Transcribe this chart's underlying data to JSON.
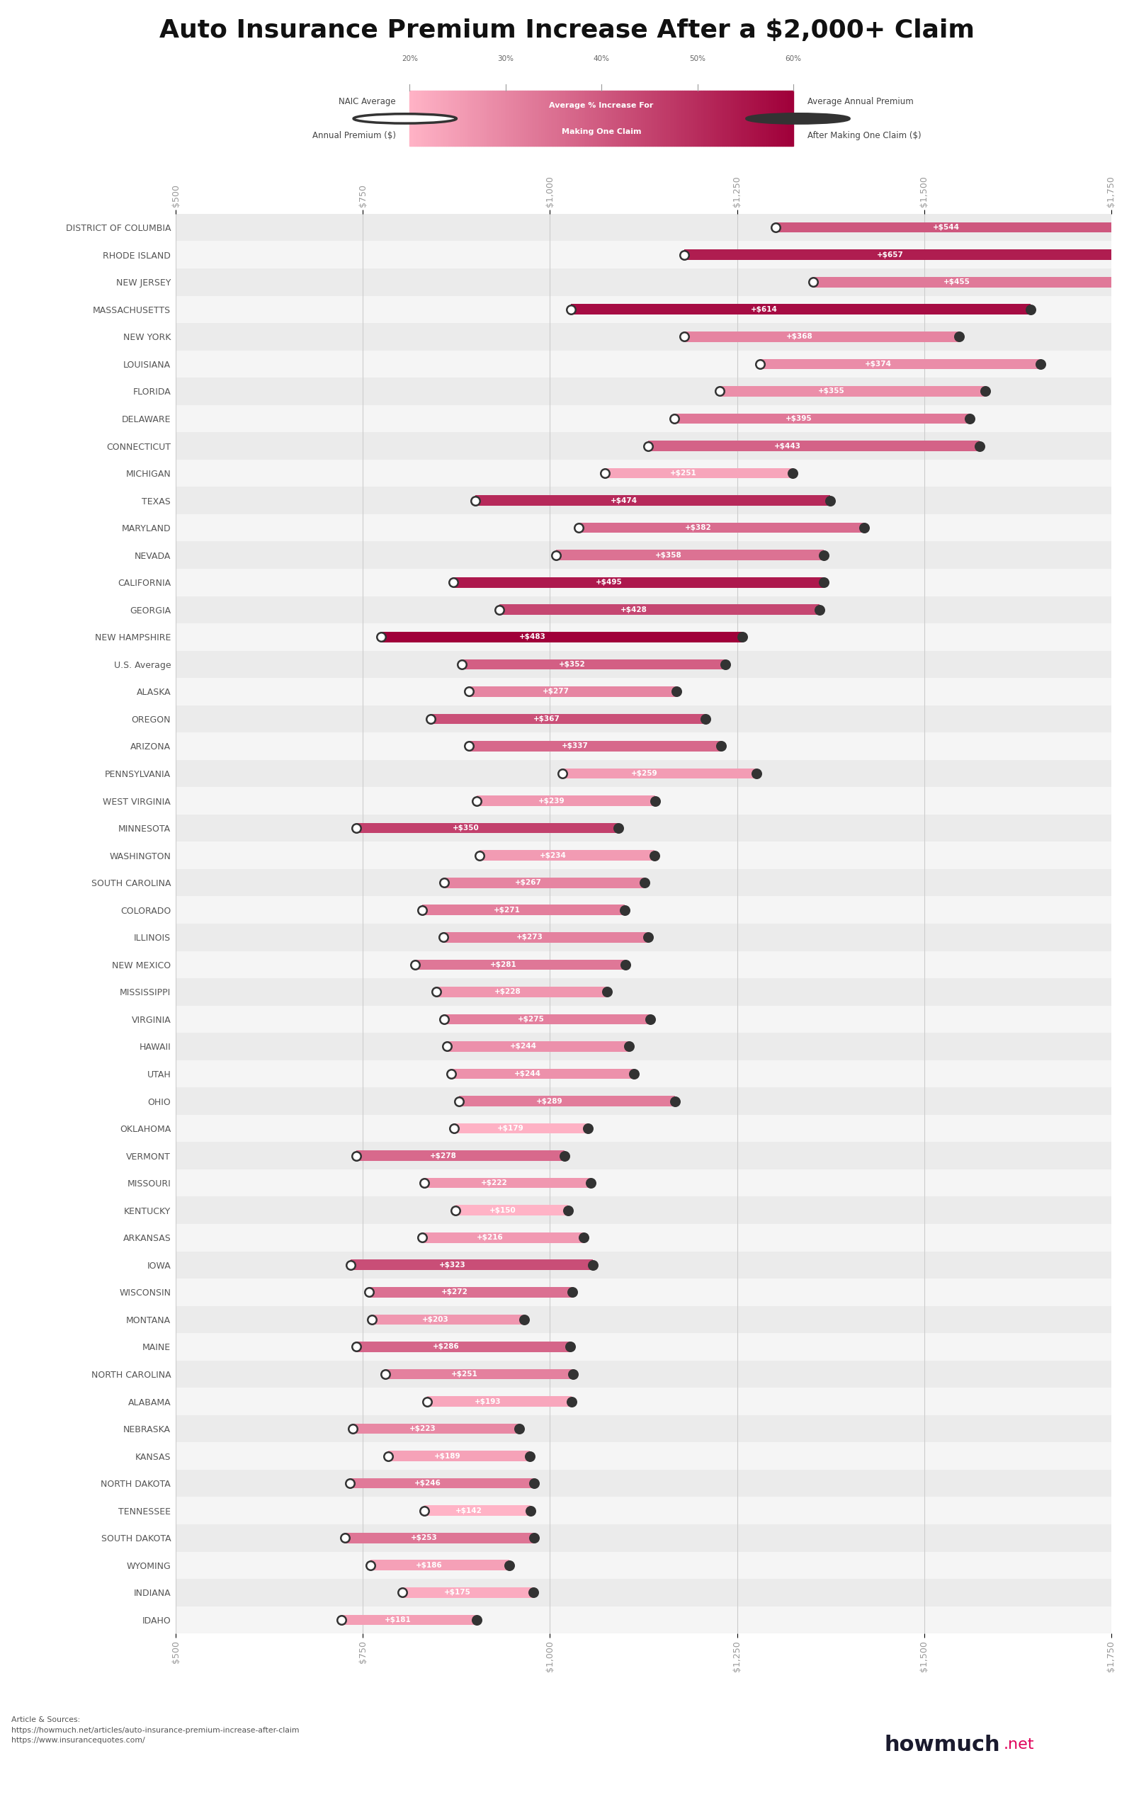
{
  "title": "Auto Insurance Premium Increase After a $2,000+ Claim",
  "states": [
    "DISTRICT OF COLUMBIA",
    "RHODE ISLAND",
    "NEW JERSEY",
    "MASSACHUSETTS",
    "NEW YORK",
    "LOUISIANA",
    "FLORIDA",
    "DELAWARE",
    "CONNECTICUT",
    "MICHIGAN",
    "TEXAS",
    "MARYLAND",
    "NEVADA",
    "CALIFORNIA",
    "GEORGIA",
    "NEW HAMPSHIRE",
    "U.S. Average",
    "ALASKA",
    "OREGON",
    "ARIZONA",
    "PENNSYLVANIA",
    "WEST VIRGINIA",
    "MINNESOTA",
    "WASHINGTON",
    "SOUTH CAROLINA",
    "COLORADO",
    "ILLINOIS",
    "NEW MEXICO",
    "MISSISSIPPI",
    "VIRGINIA",
    "HAWAII",
    "UTAH",
    "OHIO",
    "OKLAHOMA",
    "VERMONT",
    "MISSOURI",
    "KENTUCKY",
    "ARKANSAS",
    "IOWA",
    "WISCONSIN",
    "MONTANA",
    "MAINE",
    "NORTH CAROLINA",
    "ALABAMA",
    "NEBRASKA",
    "KANSAS",
    "NORTH DAKOTA",
    "TENNESSEE",
    "SOUTH DAKOTA",
    "WYOMING",
    "INDIANA",
    "IDAHO"
  ],
  "naic_premium": [
    1301,
    1179,
    1352,
    1028,
    1179,
    1281,
    1227,
    1166,
    1131,
    1073,
    900,
    1038,
    1008,
    871,
    932,
    774,
    882,
    892,
    841,
    892,
    1017,
    902,
    741,
    906,
    859,
    829,
    858,
    820,
    848,
    859,
    862,
    868,
    878,
    872,
    741,
    832,
    874,
    829,
    734,
    758,
    762,
    741,
    780,
    836,
    736,
    784,
    733,
    832,
    726,
    760,
    803,
    721
  ],
  "increase_pct": [
    41.8,
    55.7,
    33.7,
    59.7,
    31.2,
    29.2,
    28.9,
    33.9,
    39.2,
    23.4,
    52.7,
    36.8,
    35.5,
    56.8,
    45.9,
    62.4,
    39.9,
    31.0,
    43.6,
    37.8,
    25.5,
    26.5,
    47.2,
    25.8,
    31.1,
    32.7,
    31.9,
    34.3,
    26.9,
    32.0,
    28.3,
    28.1,
    33.0,
    20.5,
    37.5,
    26.7,
    17.2,
    26.1,
    44.0,
    35.9,
    26.6,
    38.6,
    32.2,
    23.1,
    30.3,
    24.1,
    33.6,
    17.1,
    34.8,
    24.5,
    21.8,
    25.1
  ],
  "increase_dollar": [
    544,
    657,
    455,
    614,
    368,
    374,
    355,
    395,
    443,
    251,
    474,
    382,
    358,
    495,
    428,
    483,
    352,
    277,
    367,
    337,
    259,
    239,
    350,
    234,
    267,
    271,
    273,
    281,
    228,
    275,
    244,
    244,
    289,
    179,
    278,
    222,
    150,
    216,
    323,
    272,
    203,
    286,
    251,
    193,
    223,
    189,
    246,
    142,
    253,
    186,
    175,
    181
  ],
  "xlim": [
    500,
    1750
  ],
  "xticks": [
    500,
    750,
    1000,
    1250,
    1500,
    1750
  ],
  "bar_color_low": "#ffb3c6",
  "bar_color_high": "#a0003a",
  "dot_left_facecolor": "#ffffff",
  "dot_right_facecolor": "#333333",
  "dot_edgecolor": "#333333",
  "row_color_even": "#ebebeb",
  "row_color_odd": "#f5f5f5",
  "gridline_color": "#cccccc",
  "label_color_white": "#ffffff",
  "state_label_color": "#555555",
  "tick_color": "#999999",
  "legend_bg": "#e8e8e8",
  "legend_pct_ticks": [
    20,
    30,
    40,
    50,
    60
  ],
  "pct_min": 20.0,
  "pct_max": 62.5,
  "source_text": "Article & Sources:\nhttps://howmuch.net/articles/auto-insurance-premium-increase-after-claim\nhttps://www.insurancequotes.com/",
  "brand": "howmuch",
  "brand_suffix": ".net",
  "brand_color": "#1a1a2e",
  "brand_suffix_color": "#e0005a"
}
